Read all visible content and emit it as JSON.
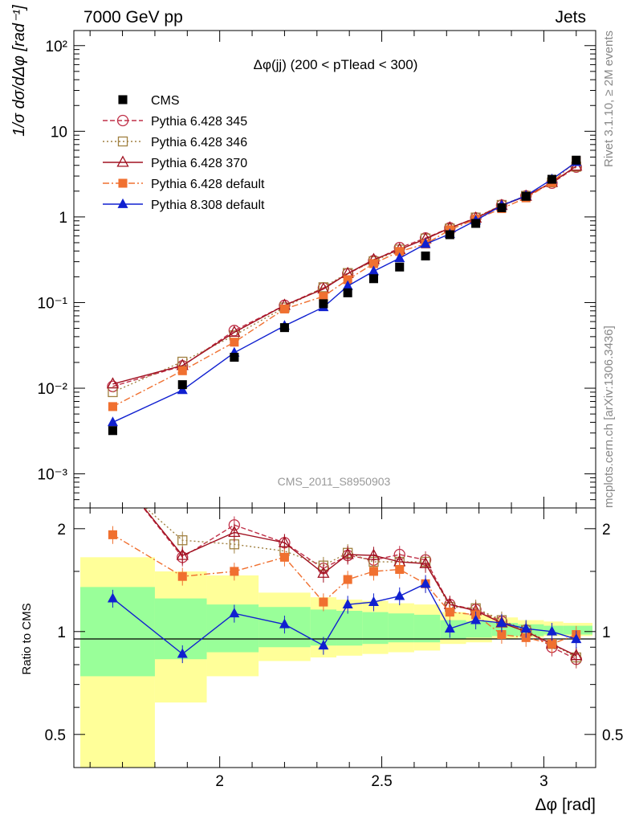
{
  "header": {
    "left": "7000 GeV pp",
    "right": "Jets"
  },
  "side": {
    "rivet": "Rivet 3.1.10, ≥ 2M events",
    "mcplots": "mcplots.cern.ch [arXiv:1306.3436]"
  },
  "watermark": "CMS_2011_S8950903",
  "chart_data": {
    "type": "line",
    "title": "Δφ(jj) (200 < pTlead <  300)",
    "xlabel": "Δφ [rad]",
    "ylabel_main": "1/σ dσ/dΔφ [rad⁻¹]",
    "ylabel_ratio": "Ratio to CMS",
    "xlim": [
      1.55,
      3.16
    ],
    "ylim_main": [
      0.0004,
      150
    ],
    "ylim_ratio": [
      0.4,
      2.3
    ],
    "yscale": "log",
    "x_ticks": [
      "2",
      "2.5",
      "3"
    ],
    "y_ticks_main": [
      "10⁻³",
      "10⁻²",
      "10⁻¹",
      "1",
      "10",
      "10²"
    ],
    "y_ticks_ratio": [
      "0.5",
      "1",
      "2"
    ],
    "legend_position": "top-left",
    "x": [
      1.67,
      1.885,
      2.045,
      2.2,
      2.32,
      2.395,
      2.475,
      2.555,
      2.635,
      2.71,
      2.79,
      2.87,
      2.945,
      3.025,
      3.1
    ],
    "x_edges": [
      1.57,
      1.8,
      1.96,
      2.12,
      2.28,
      2.36,
      2.44,
      2.52,
      2.6,
      2.68,
      2.76,
      2.84,
      2.92,
      3.0,
      3.06,
      3.15
    ],
    "data": {
      "name": "CMS",
      "values": [
        0.0032,
        0.011,
        0.023,
        0.051,
        0.097,
        0.13,
        0.19,
        0.26,
        0.35,
        0.62,
        0.84,
        1.28,
        1.74,
        2.75,
        4.6
      ],
      "band_inner": [
        [
          0.74,
          1.35
        ],
        [
          0.83,
          1.25
        ],
        [
          0.87,
          1.2
        ],
        [
          0.9,
          1.18
        ],
        [
          0.91,
          1.16
        ],
        [
          0.91,
          1.15
        ],
        [
          0.92,
          1.14
        ],
        [
          0.93,
          1.13
        ],
        [
          0.93,
          1.12
        ],
        [
          0.95,
          1.08
        ],
        [
          0.96,
          1.07
        ],
        [
          0.97,
          1.06
        ],
        [
          0.97,
          1.05
        ],
        [
          0.98,
          1.04
        ],
        [
          0.98,
          1.04
        ]
      ],
      "band_outer": [
        [
          0.4,
          1.65
        ],
        [
          0.62,
          1.5
        ],
        [
          0.74,
          1.46
        ],
        [
          0.82,
          1.3
        ],
        [
          0.84,
          1.26
        ],
        [
          0.85,
          1.24
        ],
        [
          0.86,
          1.23
        ],
        [
          0.87,
          1.21
        ],
        [
          0.88,
          1.2
        ],
        [
          0.92,
          1.14
        ],
        [
          0.93,
          1.12
        ],
        [
          0.95,
          1.1
        ],
        [
          0.96,
          1.08
        ],
        [
          0.97,
          1.07
        ],
        [
          0.97,
          1.06
        ]
      ]
    },
    "series": [
      {
        "name": "Pythia 6.428 345",
        "color": "#c03048",
        "dash": "6,3",
        "marker": "circle-open",
        "ratio": [
          3.3,
          1.65,
          2.05,
          1.82,
          1.53,
          1.67,
          1.62,
          1.68,
          1.62,
          1.2,
          1.16,
          1.07,
          1.01,
          0.9,
          0.83
        ],
        "values": [
          0.0105,
          0.0182,
          0.0471,
          0.0928,
          0.148,
          0.217,
          0.308,
          0.437,
          0.567,
          0.744,
          0.974,
          1.37,
          1.76,
          2.48,
          3.82
        ]
      },
      {
        "name": "Pythia 6.428 346",
        "color": "#a08040",
        "dash": "2,3",
        "marker": "square-open",
        "ratio": [
          2.8,
          1.85,
          1.8,
          1.72,
          1.56,
          1.7,
          1.6,
          1.6,
          1.6,
          1.18,
          1.17,
          1.08,
          1.01,
          0.92,
          0.84
        ],
        "values": [
          0.009,
          0.0204,
          0.0414,
          0.0877,
          0.151,
          0.221,
          0.304,
          0.416,
          0.56,
          0.732,
          0.983,
          1.38,
          1.76,
          2.53,
          3.86
        ]
      },
      {
        "name": "Pythia 6.428 370",
        "color": "#a01020",
        "dash": "",
        "marker": "triangle-open",
        "ratio": [
          3.5,
          1.67,
          1.95,
          1.82,
          1.48,
          1.68,
          1.67,
          1.6,
          1.58,
          1.2,
          1.15,
          1.06,
          1.0,
          0.92,
          0.85
        ],
        "values": [
          0.0112,
          0.0184,
          0.0449,
          0.0928,
          0.144,
          0.218,
          0.317,
          0.416,
          0.553,
          0.744,
          0.966,
          1.36,
          1.74,
          2.53,
          3.91
        ]
      },
      {
        "name": "Pythia 6.428 default",
        "color": "#f07030",
        "dash": "8,3,2,3",
        "marker": "square-filled",
        "ratio": [
          1.92,
          1.45,
          1.5,
          1.65,
          1.22,
          1.42,
          1.5,
          1.52,
          1.38,
          1.14,
          1.12,
          0.98,
          0.96,
          0.92,
          0.98
        ],
        "values": [
          0.0061,
          0.016,
          0.0345,
          0.0842,
          0.118,
          0.185,
          0.285,
          0.395,
          0.483,
          0.707,
          0.941,
          1.25,
          1.67,
          2.53,
          4.51
        ]
      },
      {
        "name": "Pythia 8.308 default",
        "color": "#1020d0",
        "dash": "",
        "marker": "triangle-filled",
        "ratio": [
          1.25,
          0.86,
          1.13,
          1.05,
          0.91,
          1.2,
          1.22,
          1.27,
          1.38,
          1.02,
          1.08,
          1.06,
          1.02,
          1.0,
          0.95
        ],
        "values": [
          0.004,
          0.0095,
          0.026,
          0.0536,
          0.0883,
          0.156,
          0.232,
          0.33,
          0.483,
          0.632,
          0.907,
          1.36,
          1.77,
          2.75,
          4.37
        ]
      }
    ]
  }
}
